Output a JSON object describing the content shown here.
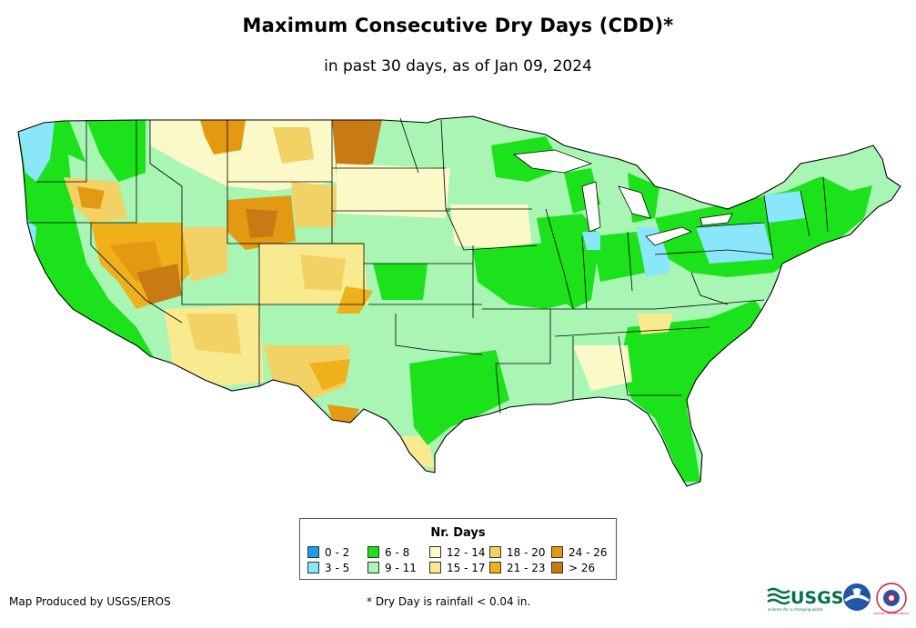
{
  "title": "Maximum Consecutive Dry Days (CDD)*",
  "subtitle": "in past 30 days, as of Jan 09, 2024",
  "legend": {
    "title": "Nr. Days",
    "items": [
      {
        "label": "0 - 2",
        "color": "#1E9BF0"
      },
      {
        "label": "3 - 5",
        "color": "#8AE6FA"
      },
      {
        "label": "6 - 8",
        "color": "#1BE21B"
      },
      {
        "label": "9 - 11",
        "color": "#A8F5B4"
      },
      {
        "label": "12 - 14",
        "color": "#FBF9C8"
      },
      {
        "label": "15 - 17",
        "color": "#F8EA8F"
      },
      {
        "label": "18 - 20",
        "color": "#F2D264"
      },
      {
        "label": "21 - 23",
        "color": "#EFB11A"
      },
      {
        "label": "24 - 26",
        "color": "#E39A12"
      },
      {
        "label": "> 26",
        "color": "#C87A14"
      }
    ]
  },
  "credit": "Map Produced by USGS/EROS",
  "footnote": "* Dry Day is rainfall < 0.04 in.",
  "logos": {
    "usgs": "USGS",
    "usgs_tagline": "science for a changing world",
    "noaa": "NOAA",
    "nws": "NATIONAL WEATHER SERVICE"
  }
}
